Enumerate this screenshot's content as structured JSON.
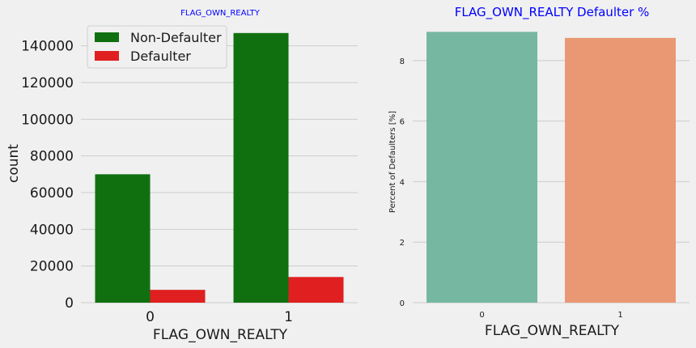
{
  "colors": {
    "title": "#0000ff",
    "non_defaulter": "#107010",
    "defaulter": "#e02020",
    "pct_bars": [
      "#76b7a2",
      "#ea9873"
    ]
  },
  "chart_data": [
    {
      "type": "bar",
      "title": "FLAG_OWN_REALTY",
      "xlabel": "FLAG_OWN_REALTY",
      "ylabel": "count",
      "categories": [
        "0",
        "1"
      ],
      "series": [
        {
          "name": "Non-Defaulter",
          "values": [
            70000,
            147000
          ]
        },
        {
          "name": "Defaulter",
          "values": [
            7000,
            14000
          ]
        }
      ],
      "ylim": [
        0,
        150000
      ],
      "yticks": [
        0,
        20000,
        40000,
        60000,
        80000,
        100000,
        120000,
        140000
      ],
      "grid": true,
      "legend": "top-left"
    },
    {
      "type": "bar",
      "title": "FLAG_OWN_REALTY Defaulter %",
      "xlabel": "FLAG_OWN_REALTY",
      "ylabel": "Percent of Defaulters [%]",
      "categories": [
        "0",
        "1"
      ],
      "values": [
        8.95,
        8.75
      ],
      "ylim": [
        0,
        9.2
      ],
      "yticks": [
        0,
        2,
        4,
        6,
        8
      ],
      "grid": true
    }
  ]
}
